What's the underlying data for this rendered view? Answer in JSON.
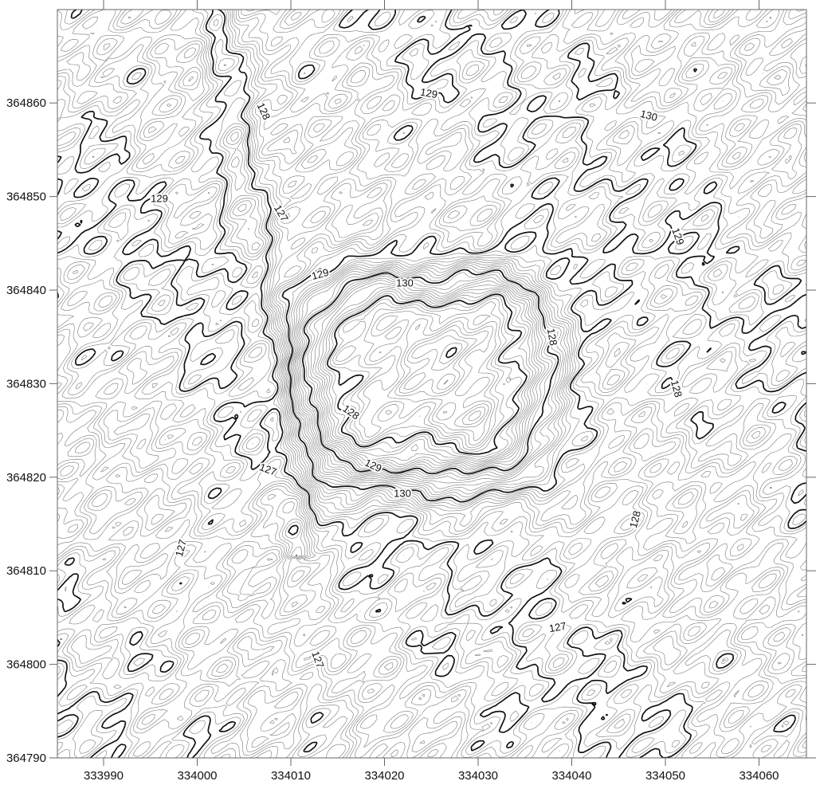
{
  "map": {
    "type": "contour map",
    "x_axis": {
      "ticks": [
        "333990",
        "334000",
        "334010",
        "334020",
        "334030",
        "334040",
        "334050",
        "334060"
      ]
    },
    "y_axis": {
      "ticks": [
        "364790",
        "364800",
        "364810",
        "364820",
        "364830",
        "364840",
        "364850",
        "364860"
      ]
    },
    "contour_labels": [
      "128",
      "129",
      "130",
      "127",
      "128",
      "129",
      "130",
      "128",
      "129",
      "130",
      "129",
      "128",
      "127",
      "127",
      "127",
      "127",
      "128",
      "129"
    ],
    "colors": {
      "minor_contour": "#7a7a7a",
      "major_contour": "#111111",
      "frame": "#666666"
    }
  }
}
